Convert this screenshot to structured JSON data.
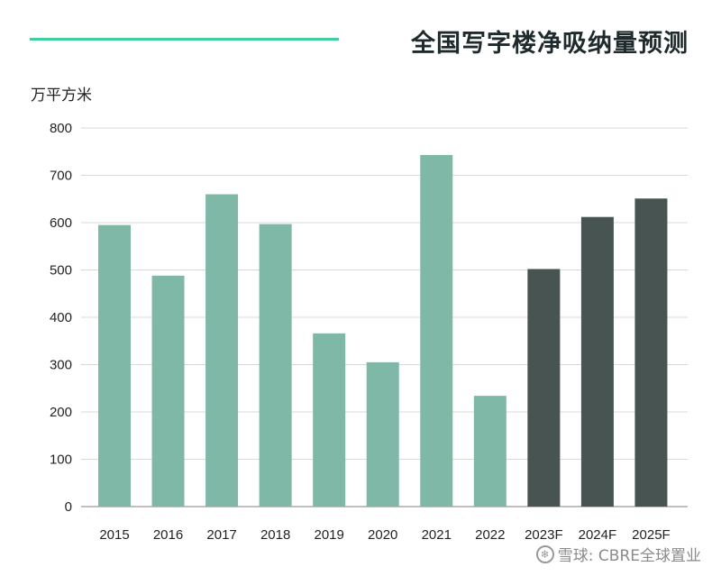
{
  "chart_data": {
    "type": "bar",
    "title": "全国写字楼净吸纳量预测",
    "ylabel": "万平方米",
    "xlabel": "",
    "ylim": [
      0,
      800
    ],
    "yticks": [
      0,
      100,
      200,
      300,
      400,
      500,
      600,
      700,
      800
    ],
    "grid": true,
    "categories": [
      "2015",
      "2016",
      "2017",
      "2018",
      "2019",
      "2020",
      "2021",
      "2022",
      "2023F",
      "2024F",
      "2025F"
    ],
    "values": [
      595,
      488,
      660,
      597,
      366,
      305,
      743,
      234,
      502,
      612,
      651
    ],
    "forecast": [
      false,
      false,
      false,
      false,
      false,
      false,
      false,
      false,
      true,
      true,
      true
    ],
    "colors": {
      "actual": "#80b8a8",
      "forecast": "#475452",
      "accent": "#3ecf9a",
      "grid": "#d9d9d9"
    }
  },
  "watermark": {
    "icon": "snowball-icon",
    "text": "雪球: CBRE全球置业"
  }
}
